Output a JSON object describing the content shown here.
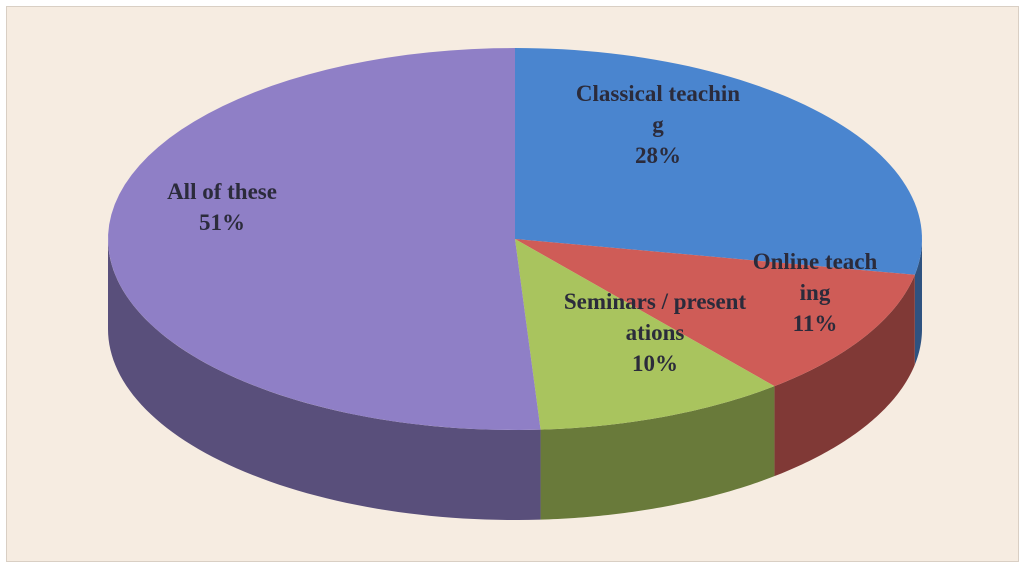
{
  "chart_data": {
    "type": "pie",
    "categories": [
      "Classical teaching",
      "Online teaching",
      "Seminars / presentations",
      "All of these"
    ],
    "values": [
      28,
      11,
      10,
      51
    ],
    "value_labels": [
      "28%",
      "11%",
      "10%",
      "51%"
    ],
    "colors": [
      "#4a85cf",
      "#cf5c57",
      "#a9c45e",
      "#8f7fc6"
    ]
  }
}
